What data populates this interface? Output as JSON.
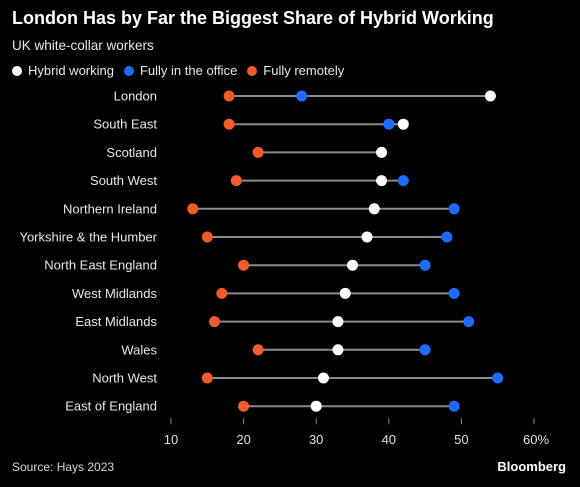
{
  "chart_data": {
    "type": "dot-range",
    "title": "London Has by Far the Biggest Share of Hybrid Working",
    "subtitle": "UK white-collar workers",
    "xlim": [
      10,
      60
    ],
    "xticks": [
      "10",
      "20",
      "30",
      "40",
      "50",
      "60%"
    ],
    "tick_values": [
      10,
      20,
      30,
      40,
      50,
      60
    ],
    "legend_position": "top-left",
    "series": [
      {
        "name": "Hybrid working",
        "color": "#ffffff"
      },
      {
        "name": "Fully in the office",
        "color": "#1f6bff"
      },
      {
        "name": "Fully remotely",
        "color": "#f25b2a"
      }
    ],
    "categories": [
      "London",
      "South East",
      "Scotland",
      "South West",
      "Northern Ireland",
      "Yorkshire & the Humber",
      "North East England",
      "West Midlands",
      "East Midlands",
      "Wales",
      "North West",
      "East of England"
    ],
    "values": {
      "hybrid": [
        54,
        42,
        39,
        39,
        38,
        37,
        35,
        34,
        33,
        33,
        31,
        30
      ],
      "office": [
        28,
        40,
        39,
        42,
        49,
        48,
        45,
        49,
        51,
        45,
        55,
        49
      ],
      "remote": [
        18,
        18,
        22,
        19,
        13,
        15,
        20,
        17,
        16,
        22,
        15,
        20
      ]
    }
  },
  "footer": {
    "source": "Source: Hays 2023",
    "brand": "Bloomberg"
  }
}
